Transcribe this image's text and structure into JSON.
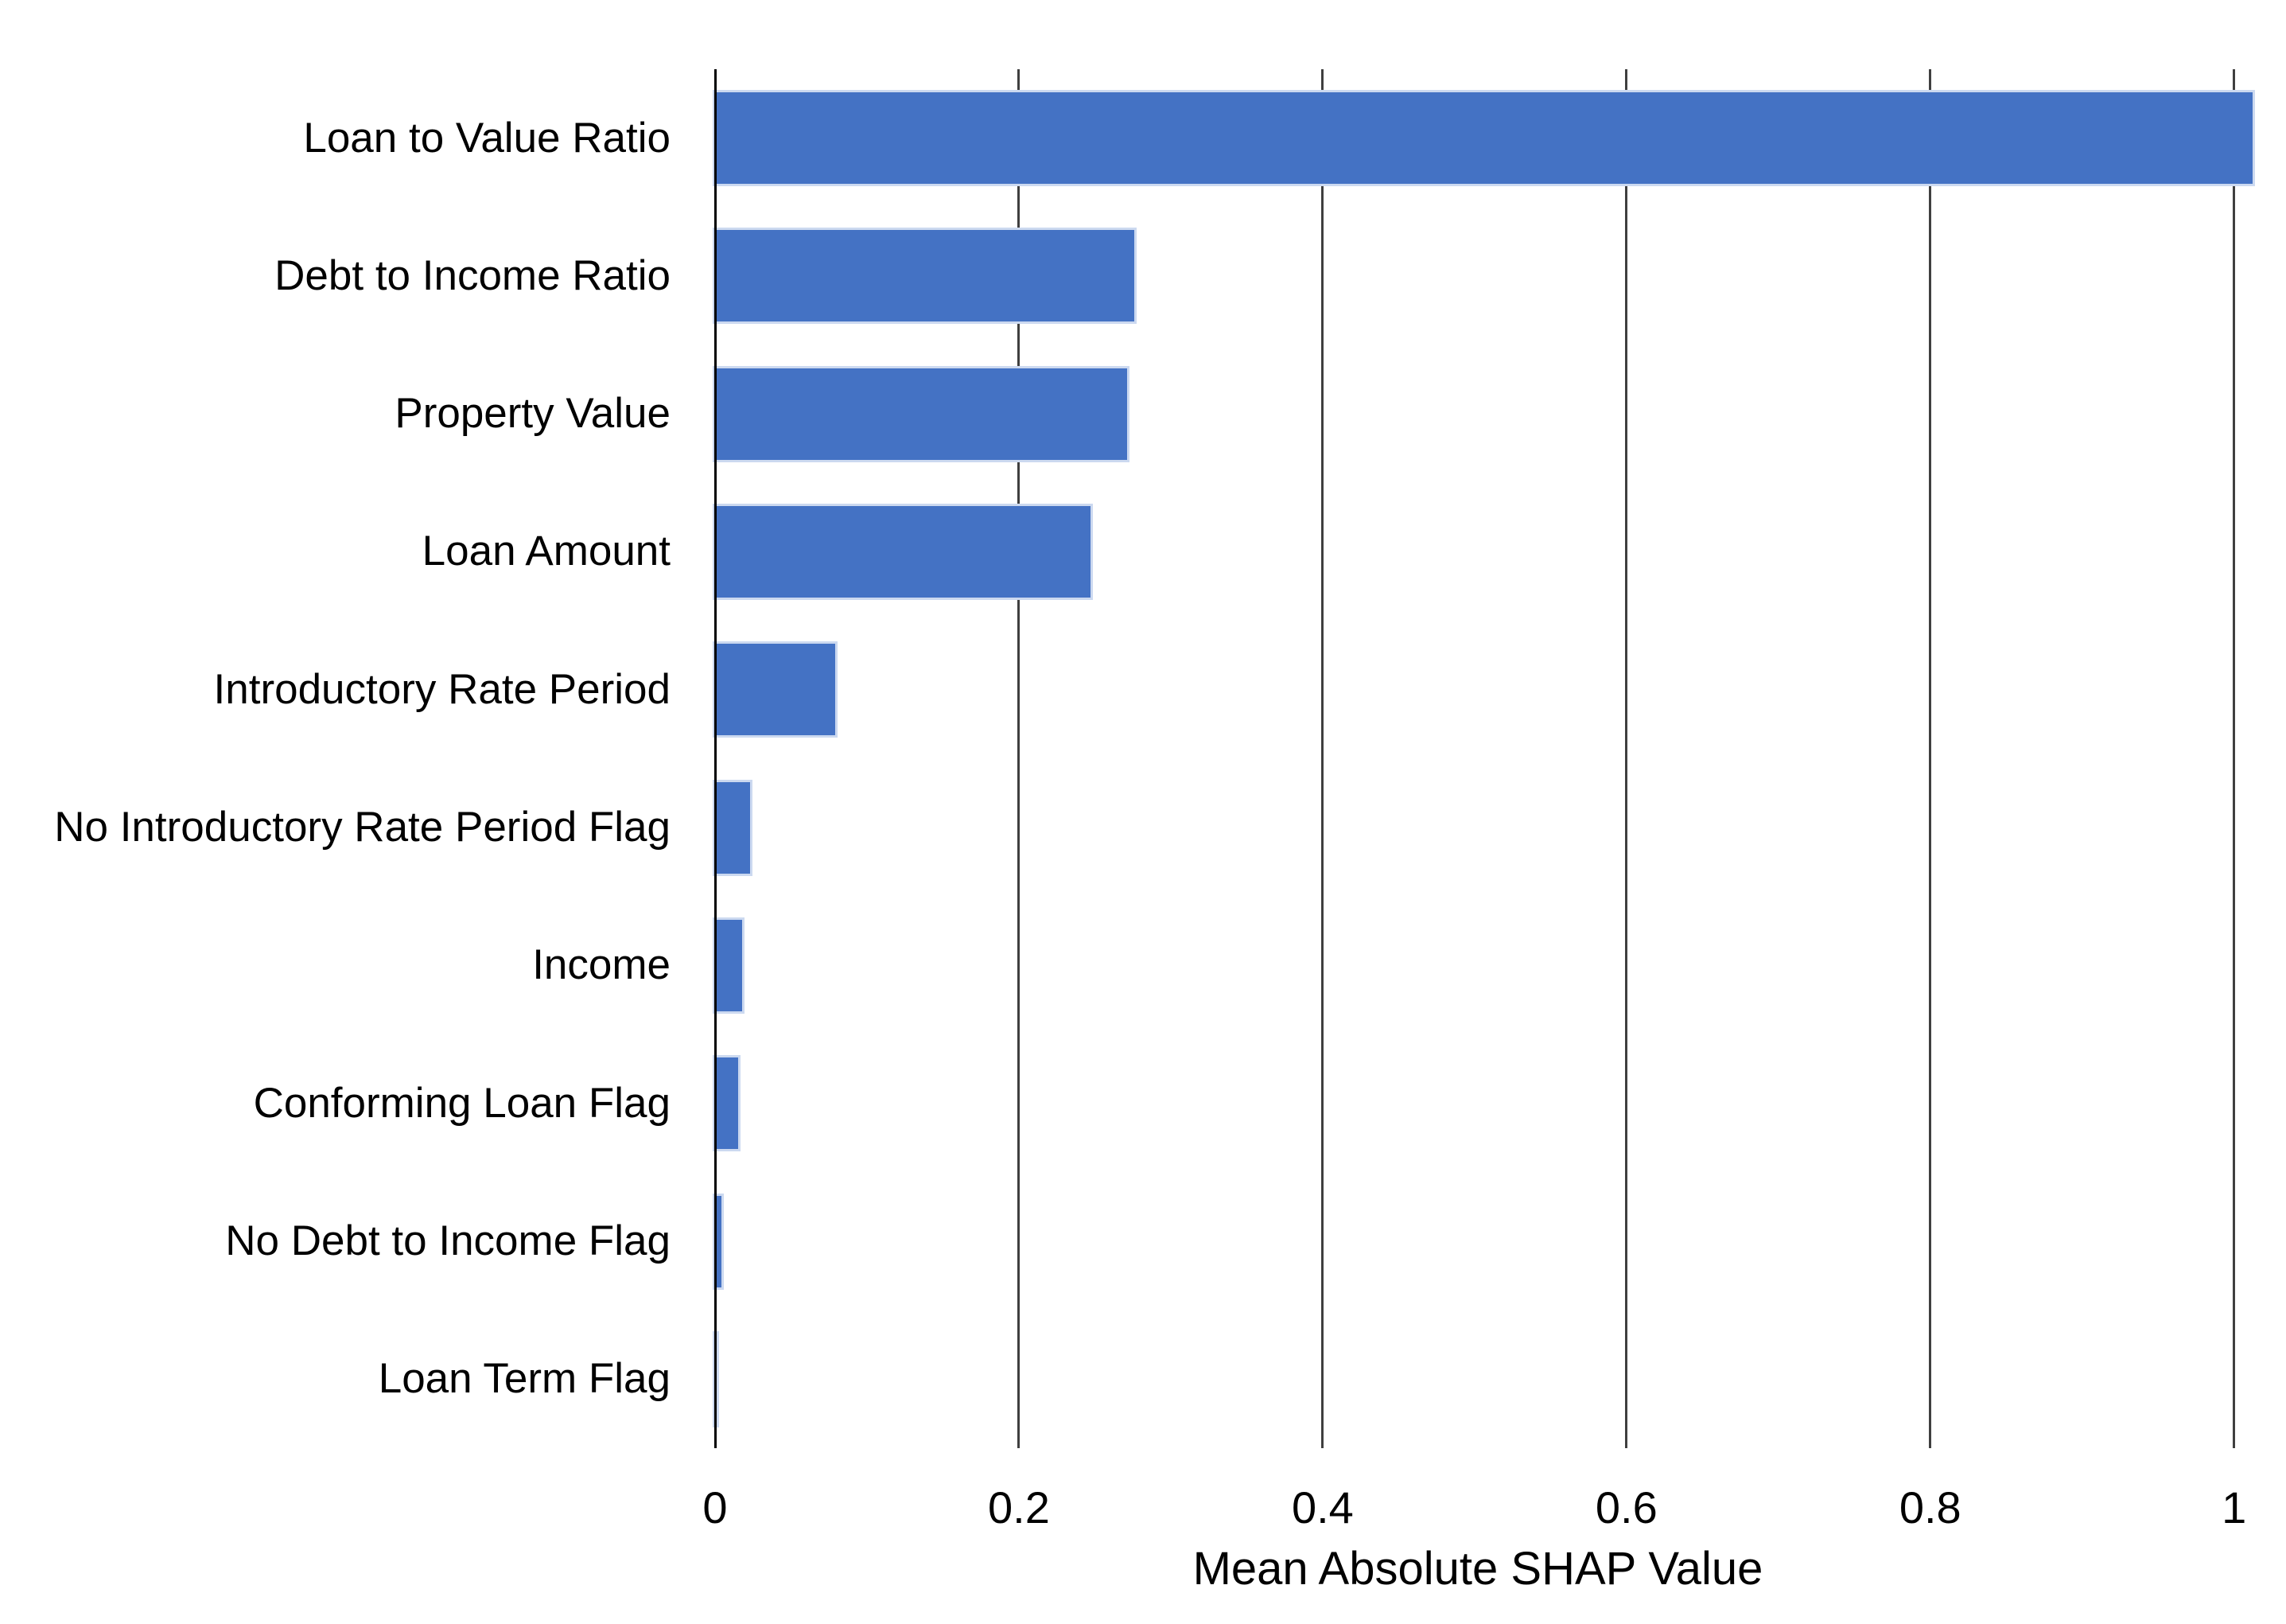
{
  "chart_data": {
    "type": "bar",
    "orientation": "horizontal",
    "title": "",
    "xlabel": "Mean Absolute SHAP Value",
    "ylabel": "",
    "categories": [
      "Loan to Value Ratio",
      "Debt to Income Ratio",
      "Property Value",
      "Loan Amount",
      "Introductory Rate Period",
      "No Introductory Rate Period Flag",
      "Income",
      "Conforming Loan Flag",
      "No Debt to Income Flag",
      "Loan Term Flag"
    ],
    "values": [
      1.012,
      0.276,
      0.271,
      0.247,
      0.079,
      0.023,
      0.018,
      0.015,
      0.004,
      0.001
    ],
    "xlim": [
      0,
      1.03
    ],
    "xticks": [
      0,
      0.2,
      0.4,
      0.6,
      0.8,
      1
    ],
    "xtick_labels": [
      "0",
      "0.2",
      "0.4",
      "0.6",
      "0.8",
      "1"
    ],
    "grid": "vertical-gridlines-on",
    "legend": "none",
    "colors": {
      "bar_fill": "#4472C4",
      "bar_edge": "#ccd9f0",
      "gridline": "#3f3f3f",
      "axis_line": "#000000",
      "text": "#000000"
    }
  }
}
